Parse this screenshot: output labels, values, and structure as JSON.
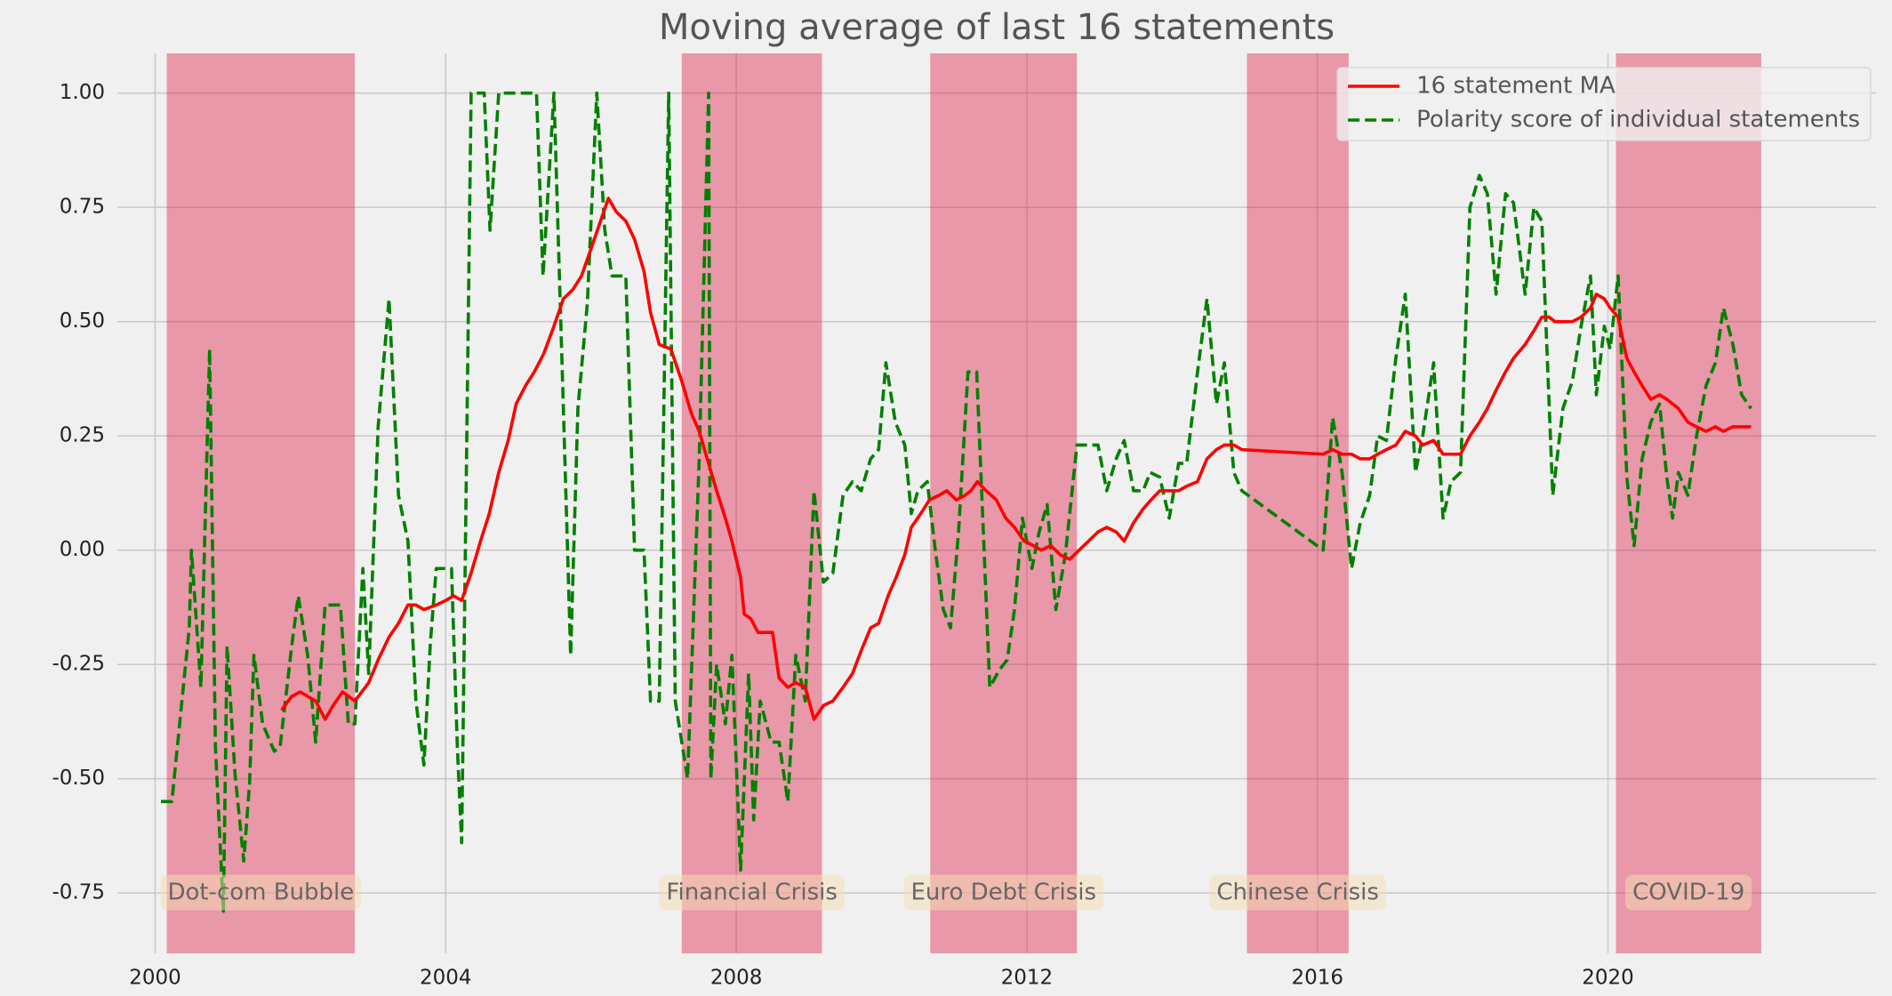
{
  "chart_data": {
    "type": "line",
    "title": "Moving average of last 16 statements",
    "xlim": [
      1999.48,
      2023.69
    ],
    "xticks": [
      2000,
      2004,
      2008,
      2012,
      2016,
      2020
    ],
    "ylim": [
      -0.882,
      1.087
    ],
    "yticks": [
      {
        "value": -0.75,
        "label": "-0.75"
      },
      {
        "value": -0.5,
        "label": "-0.50"
      },
      {
        "value": -0.25,
        "label": "-0.25"
      },
      {
        "value": 0,
        "label": "0.00"
      },
      {
        "value": 0.25,
        "label": "0.25"
      },
      {
        "value": 0.5,
        "label": "0.50"
      },
      {
        "value": 0.75,
        "label": "0.75"
      },
      {
        "value": 1,
        "label": "1.00"
      }
    ],
    "grid": true,
    "legend": "upper right",
    "annotations": [
      {
        "label": "Dot-com Bubble",
        "start": 2000.16,
        "end": 2002.75,
        "y": -0.75
      },
      {
        "label": "Financial Crisis",
        "start": 2007.25,
        "end": 2009.18,
        "y": -0.75
      },
      {
        "label": "Euro Debt Crisis",
        "start": 2010.67,
        "end": 2012.69,
        "y": -0.75
      },
      {
        "label": "Chinese Crisis",
        "start": 2015.03,
        "end": 2016.43,
        "y": -0.75
      },
      {
        "label": "COVID-19",
        "start": 2020.11,
        "end": 2022.11,
        "y": -0.75
      }
    ],
    "span_color": "#dc143c",
    "series": [
      {
        "name": "16 statement MA",
        "color": "#ff0000",
        "linestyle": "solid",
        "x": [
          2001.74,
          2001.88,
          2002.0,
          2002.1,
          2002.21,
          2002.34,
          2002.45,
          2002.58,
          2002.75,
          2002.94,
          2003.07,
          2003.22,
          2003.35,
          2003.48,
          2003.59,
          2003.7,
          2003.87,
          2004.0,
          2004.11,
          2004.22,
          2004.35,
          2004.48,
          2004.6,
          2004.73,
          2004.86,
          2004.97,
          2005.1,
          2005.22,
          2005.35,
          2005.49,
          2005.62,
          2005.75,
          2005.87,
          2005.98,
          2006.11,
          2006.24,
          2006.35,
          2006.48,
          2006.6,
          2006.73,
          2006.82,
          2006.94,
          2007.1,
          2007.25,
          2007.38,
          2007.49,
          2007.6,
          2007.73,
          2007.85,
          2007.94,
          2008.06,
          2008.11,
          2008.2,
          2008.3,
          2008.5,
          2008.59,
          2008.71,
          2008.82,
          2008.95,
          2009.07,
          2009.2,
          2009.33,
          2009.47,
          2009.6,
          2009.72,
          2009.85,
          2009.96,
          2010.09,
          2010.2,
          2010.32,
          2010.41,
          2010.54,
          2010.66,
          2010.79,
          2010.9,
          2011.03,
          2011.15,
          2011.23,
          2011.32,
          2011.44,
          2011.58,
          2011.71,
          2011.83,
          2011.96,
          2012.09,
          2012.2,
          2012.33,
          2012.46,
          2012.59,
          2012.72,
          2012.85,
          2012.98,
          2013.1,
          2013.23,
          2013.34,
          2013.47,
          2013.6,
          2013.71,
          2013.83,
          2013.96,
          2014.09,
          2014.2,
          2014.35,
          2014.48,
          2014.61,
          2014.72,
          2014.85,
          2014.96,
          2016.08,
          2016.21,
          2016.34,
          2016.47,
          2016.59,
          2016.72,
          2016.83,
          2016.95,
          2017.08,
          2017.21,
          2017.35,
          2017.45,
          2017.6,
          2017.73,
          2017.84,
          2017.97,
          2018.1,
          2018.23,
          2018.34,
          2018.46,
          2018.59,
          2018.7,
          2018.86,
          2018.98,
          2019.09,
          2019.19,
          2019.27,
          2019.38,
          2019.51,
          2019.63,
          2019.76,
          2019.84,
          2019.95,
          2020.03,
          2020.14,
          2020.26,
          2020.36,
          2020.47,
          2020.59,
          2020.71,
          2020.81,
          2020.97,
          2021.1,
          2021.22,
          2021.35,
          2021.48,
          2021.59,
          2021.72,
          2021.84,
          2021.97
        ],
        "values": [
          -0.35,
          -0.32,
          -0.31,
          -0.32,
          -0.33,
          -0.37,
          -0.34,
          -0.31,
          -0.33,
          -0.29,
          -0.24,
          -0.19,
          -0.16,
          -0.12,
          -0.12,
          -0.13,
          -0.12,
          -0.11,
          -0.1,
          -0.11,
          -0.05,
          0.02,
          0.08,
          0.17,
          0.24,
          0.32,
          0.36,
          0.39,
          0.43,
          0.49,
          0.55,
          0.57,
          0.6,
          0.65,
          0.71,
          0.77,
          0.74,
          0.72,
          0.68,
          0.61,
          0.52,
          0.45,
          0.44,
          0.37,
          0.3,
          0.26,
          0.2,
          0.13,
          0.07,
          0.02,
          -0.06,
          -0.14,
          -0.15,
          -0.18,
          -0.18,
          -0.28,
          -0.3,
          -0.29,
          -0.3,
          -0.37,
          -0.34,
          -0.33,
          -0.3,
          -0.27,
          -0.22,
          -0.17,
          -0.16,
          -0.1,
          -0.06,
          -0.01,
          0.05,
          0.08,
          0.11,
          0.12,
          0.13,
          0.11,
          0.12,
          0.13,
          0.15,
          0.13,
          0.11,
          0.07,
          0.05,
          0.02,
          0.01,
          0,
          0.01,
          -0.01,
          -0.02,
          0,
          0.02,
          0.04,
          0.05,
          0.04,
          0.02,
          0.06,
          0.09,
          0.11,
          0.13,
          0.13,
          0.13,
          0.14,
          0.15,
          0.2,
          0.22,
          0.23,
          0.23,
          0.22,
          0.21,
          0.22,
          0.21,
          0.21,
          0.2,
          0.2,
          0.21,
          0.22,
          0.23,
          0.26,
          0.25,
          0.23,
          0.24,
          0.21,
          0.21,
          0.21,
          0.25,
          0.28,
          0.31,
          0.35,
          0.39,
          0.42,
          0.45,
          0.48,
          0.51,
          0.51,
          0.5,
          0.5,
          0.5,
          0.51,
          0.53,
          0.56,
          0.55,
          0.53,
          0.51,
          0.42,
          0.39,
          0.36,
          0.33,
          0.34,
          0.33,
          0.31,
          0.28,
          0.27,
          0.26,
          0.27,
          0.26,
          0.27,
          0.27,
          0.27
        ]
      },
      {
        "name": "Polarity score of individual statements",
        "color": "#008000",
        "linestyle": "dashed",
        "x": [
          2000.08,
          2000.23,
          2000.47,
          2000.5,
          2000.63,
          2000.75,
          2000.83,
          2000.94,
          2000.99,
          2001.1,
          2001.22,
          2001.3,
          2001.36,
          2001.48,
          2001.64,
          2001.72,
          2001.88,
          2001.97,
          2002.1,
          2002.21,
          2002.34,
          2002.55,
          2002.66,
          2002.75,
          2002.86,
          2002.94,
          2003.07,
          2003.22,
          2003.35,
          2003.48,
          2003.59,
          2003.7,
          2003.79,
          2003.87,
          2004.08,
          2004.16,
          2004.22,
          2004.35,
          2004.53,
          2004.61,
          2004.73,
          2004.97,
          2005.25,
          2005.34,
          2005.49,
          2005.62,
          2005.72,
          2005.82,
          2005.95,
          2006.08,
          2006.19,
          2006.29,
          2006.35,
          2006.48,
          2006.6,
          2006.73,
          2006.82,
          2006.94,
          2007.07,
          2007.16,
          2007.33,
          2007.49,
          2007.62,
          2007.65,
          2007.73,
          2007.85,
          2007.94,
          2008.06,
          2008.17,
          2008.24,
          2008.33,
          2008.48,
          2008.59,
          2008.71,
          2008.82,
          2008.95,
          2009.07,
          2009.2,
          2009.33,
          2009.47,
          2009.6,
          2009.72,
          2009.85,
          2009.96,
          2010.06,
          2010.19,
          2010.32,
          2010.41,
          2010.5,
          2010.63,
          2010.74,
          2010.85,
          2010.95,
          2011.06,
          2011.19,
          2011.31,
          2011.49,
          2011.63,
          2011.73,
          2011.83,
          2011.94,
          2012.07,
          2012.17,
          2012.28,
          2012.4,
          2012.53,
          2012.69,
          2012.98,
          2013.1,
          2013.23,
          2013.34,
          2013.47,
          2013.6,
          2013.7,
          2013.83,
          2013.96,
          2014.09,
          2014.2,
          2014.35,
          2014.48,
          2014.61,
          2014.72,
          2014.85,
          2014.96,
          2016.08,
          2016.21,
          2016.34,
          2016.47,
          2016.59,
          2016.72,
          2016.83,
          2016.95,
          2017.08,
          2017.21,
          2017.35,
          2017.45,
          2017.6,
          2017.73,
          2017.84,
          2017.97,
          2018.1,
          2018.23,
          2018.34,
          2018.46,
          2018.59,
          2018.7,
          2018.86,
          2018.98,
          2019.09,
          2019.24,
          2019.38,
          2019.51,
          2019.63,
          2019.76,
          2019.84,
          2019.95,
          2020.03,
          2020.14,
          2020.26,
          2020.36,
          2020.47,
          2020.59,
          2020.71,
          2020.81,
          2020.89,
          2020.97,
          2021.1,
          2021.22,
          2021.35,
          2021.48,
          2021.59,
          2021.72,
          2021.84,
          2021.97
        ],
        "values": [
          -0.55,
          -0.55,
          -0.17,
          0,
          -0.3,
          0.44,
          -0.43,
          -0.79,
          -0.21,
          -0.49,
          -0.68,
          -0.51,
          -0.23,
          -0.38,
          -0.44,
          -0.43,
          -0.21,
          -0.1,
          -0.23,
          -0.42,
          -0.12,
          -0.12,
          -0.38,
          -0.38,
          -0.04,
          -0.27,
          0.27,
          0.55,
          0.12,
          0.02,
          -0.33,
          -0.47,
          -0.2,
          -0.04,
          -0.04,
          -0.43,
          -0.64,
          1,
          1,
          0.7,
          1,
          1,
          1,
          0.6,
          1,
          0.31,
          -0.23,
          0.31,
          0.54,
          1,
          0.7,
          0.6,
          0.6,
          0.6,
          0,
          0,
          -0.33,
          -0.33,
          1,
          -0.33,
          -0.5,
          0.2,
          1,
          -0.5,
          -0.25,
          -0.38,
          -0.23,
          -0.7,
          -0.27,
          -0.59,
          -0.33,
          -0.42,
          -0.42,
          -0.55,
          -0.23,
          -0.33,
          0.13,
          -0.07,
          -0.05,
          0.12,
          0.15,
          0.13,
          0.2,
          0.22,
          0.41,
          0.28,
          0.23,
          0.08,
          0.13,
          0.15,
          0,
          -0.13,
          -0.17,
          0.04,
          0.39,
          0.39,
          -0.3,
          -0.26,
          -0.24,
          -0.13,
          0.07,
          -0.04,
          0.04,
          0.1,
          -0.13,
          -0.01,
          0.23,
          0.23,
          0.13,
          0.2,
          0.24,
          0.13,
          0.13,
          0.17,
          0.16,
          0.07,
          0.19,
          0.19,
          0.39,
          0.55,
          0.32,
          0.41,
          0.17,
          0.13,
          0,
          0.29,
          0.17,
          -0.04,
          0.06,
          0.12,
          0.25,
          0.24,
          0.42,
          0.56,
          0.17,
          0.25,
          0.41,
          0.07,
          0.15,
          0.17,
          0.75,
          0.82,
          0.78,
          0.56,
          0.78,
          0.76,
          0.56,
          0.75,
          0.72,
          0.12,
          0.31,
          0.37,
          0.49,
          0.6,
          0.34,
          0.49,
          0.44,
          0.6,
          0.16,
          0.01,
          0.2,
          0.28,
          0.32,
          0.16,
          0.07,
          0.17,
          0.12,
          0.25,
          0.36,
          0.41,
          0.53,
          0.45,
          0.34,
          0.31
        ]
      }
    ]
  }
}
